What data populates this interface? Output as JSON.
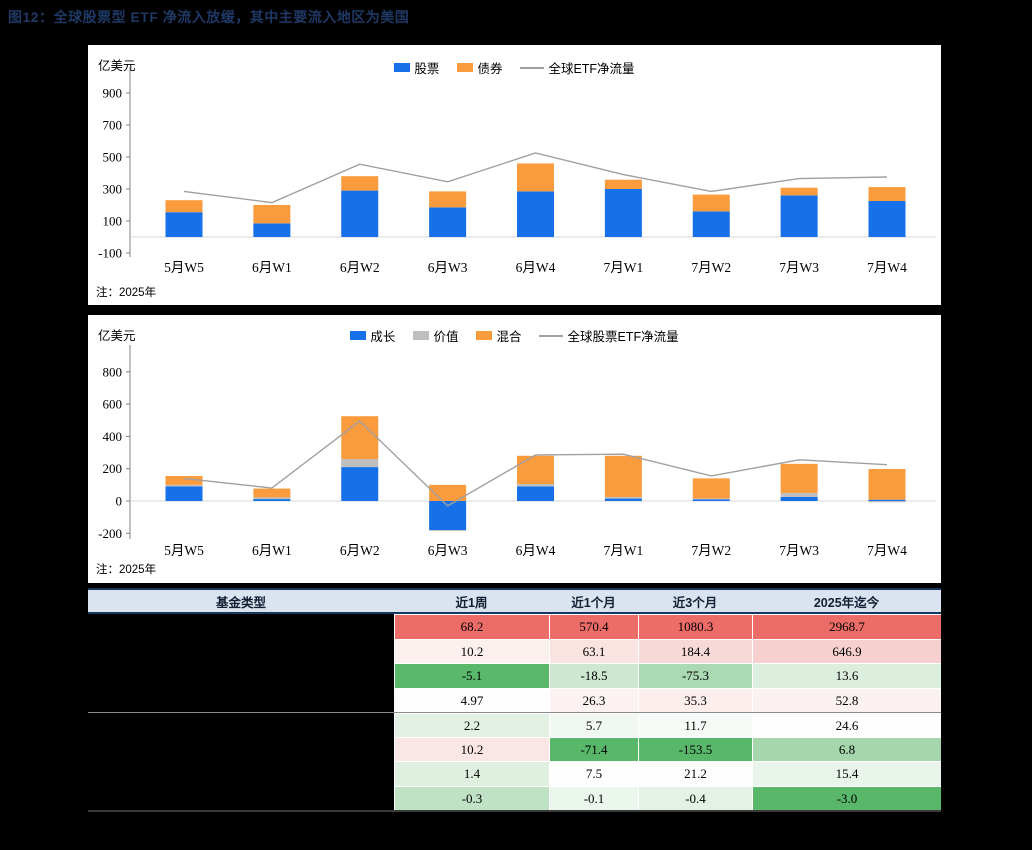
{
  "page": {
    "title": "图12：全球股票型 ETF 净流入放缓，其中主要流入地区为美国",
    "title_color": "#1F3864",
    "background": "#000000"
  },
  "chart_data": [
    {
      "type": "bar",
      "subtype": "stacked-bar-with-line",
      "unit": "亿美元",
      "note": "注：2025年",
      "categories": [
        "5月W5",
        "6月W1",
        "6月W2",
        "6月W3",
        "6月W4",
        "7月W1",
        "7月W2",
        "7月W3",
        "7月W4"
      ],
      "series": [
        {
          "name": "股票",
          "color": "#1670E8",
          "values": [
            155,
            85,
            290,
            185,
            285,
            300,
            160,
            260,
            225
          ]
        },
        {
          "name": "债券",
          "color": "#FA9B3D",
          "values": [
            75,
            115,
            90,
            100,
            175,
            58,
            105,
            48,
            87
          ]
        }
      ],
      "line": {
        "name": "全球ETF净流量",
        "color": "#A0A0A0",
        "values": [
          285,
          215,
          455,
          345,
          525,
          390,
          285,
          365,
          375
        ]
      },
      "yticks": [
        900,
        700,
        500,
        300,
        100,
        -100
      ],
      "ylim": [
        -160,
        960
      ],
      "grid": false,
      "legend_position": "top-center"
    },
    {
      "type": "bar",
      "subtype": "stacked-bar-with-line",
      "unit": "亿美元",
      "note": "注：2025年",
      "categories": [
        "5月W5",
        "6月W1",
        "6月W2",
        "6月W3",
        "6月W4",
        "7月W1",
        "7月W2",
        "7月W3",
        "7月W4"
      ],
      "series": [
        {
          "name": "成长",
          "color": "#1670E8",
          "values": [
            90,
            12,
            210,
            -180,
            90,
            15,
            10,
            25,
            8
          ]
        },
        {
          "name": "价值",
          "color": "#BFBFBF",
          "values": [
            10,
            10,
            50,
            -5,
            15,
            10,
            5,
            25,
            -8
          ]
        },
        {
          "name": "混合",
          "color": "#FA9B3D",
          "values": [
            55,
            55,
            265,
            100,
            175,
            255,
            125,
            180,
            190
          ]
        }
      ],
      "line": {
        "name": "全球股票ETF净流量",
        "color": "#A0A0A0",
        "values": [
          140,
          80,
          495,
          -30,
          285,
          290,
          155,
          255,
          225
        ]
      },
      "yticks": [
        800,
        600,
        400,
        200,
        0,
        -200
      ],
      "ylim": [
        -250,
        960
      ],
      "grid": false,
      "legend_position": "top-center"
    },
    {
      "type": "table",
      "columns": [
        "基金类型",
        "近1周",
        "近1个月",
        "近3个月",
        "2025年迄今"
      ],
      "header_bg": "#D9E4F0",
      "first_column_redacted": true,
      "rows": [
        {
          "values": [
            "68.2",
            "570.4",
            "1080.3",
            "2968.7"
          ],
          "colors": [
            "#EC6C68",
            "#EC6C68",
            "#EC6C68",
            "#EC6C68"
          ]
        },
        {
          "values": [
            "10.2",
            "63.1",
            "184.4",
            "646.9"
          ],
          "colors": [
            "#FCF0EF",
            "#FAE4E2",
            "#F7D9D7",
            "#F5D0CE"
          ]
        },
        {
          "values": [
            "-5.1",
            "-18.5",
            "-75.3",
            "13.6"
          ],
          "colors": [
            "#5AB86B",
            "#CCE8CF",
            "#ABD9B1",
            "#DCEFDE"
          ]
        },
        {
          "values": [
            "4.97",
            "26.3",
            "35.3",
            "52.8"
          ],
          "colors": [
            "#FEFDFD",
            "#FCF2F1",
            "#FBEEEC",
            "#FBF1F0"
          ]
        },
        {
          "values": [
            "2.2",
            "5.7",
            "11.7",
            "24.6"
          ],
          "colors": [
            "#E2F1E4",
            "#F1F8F2",
            "#F6FBF7",
            "#FDFEFD"
          ]
        },
        {
          "values": [
            "10.2",
            "-71.4",
            "-153.5",
            "6.8"
          ],
          "colors": [
            "#FAE7E5",
            "#58B769",
            "#58B769",
            "#A5D6AC"
          ]
        },
        {
          "values": [
            "1.4",
            "7.5",
            "21.2",
            "15.4"
          ],
          "colors": [
            "#DFF0E1",
            "#FDFEFD",
            "#FCFDFC",
            "#E9F5EB"
          ]
        },
        {
          "values": [
            "-0.3",
            "-0.1",
            "-0.4",
            "-3.0"
          ],
          "colors": [
            "#BFE2C4",
            "#EBF6ED",
            "#E3F2E5",
            "#58B769"
          ]
        }
      ]
    }
  ]
}
